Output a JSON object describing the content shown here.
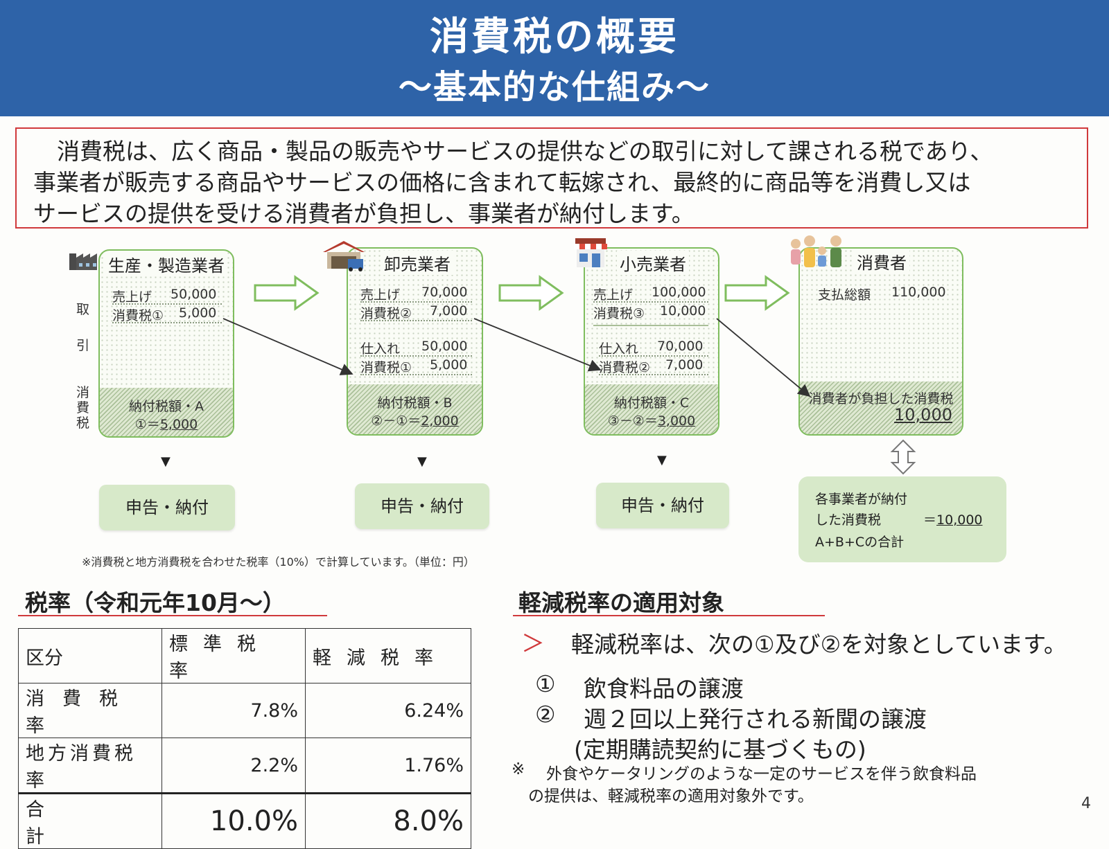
{
  "header": {
    "title": "消費税の概要",
    "subtitle": "～基本的な仕組み～"
  },
  "intro": {
    "line1": "消費税は、広く商品・製品の販売やサービスの提供などの取引に対して課される税であり、",
    "line2": "事業者が販売する商品やサービスの価格に含まれて転嫁され、最終的に商品等を消費し又は",
    "line3": "サービスの提供を受ける消費者が負担し、事業者が納付します。"
  },
  "side_labels": {
    "a": "取",
    "b": "引",
    "c1": "消",
    "c2": "費",
    "c3": "税"
  },
  "stages": [
    {
      "title": "生産・製造業者",
      "icon": "factory-icon",
      "sales_label": "売上げ",
      "sales_value": "50,000",
      "tax_label": "消費税①",
      "tax_value": "5,000",
      "pay_label": "納付税額・A",
      "pay_formula": "①＝",
      "pay_value": "5,000",
      "button": "申告・納付"
    },
    {
      "title": "卸売業者",
      "icon": "warehouse-icon",
      "sales_label": "売上げ",
      "sales_value": "70,000",
      "tax_label": "消費税②",
      "tax_value": "7,000",
      "purchase_label": "仕入れ",
      "purchase_value": "50,000",
      "ptax_label": "消費税①",
      "ptax_value": "5,000",
      "pay_label": "納付税額・B",
      "pay_formula": "②－①＝",
      "pay_value": "2,000",
      "button": "申告・納付"
    },
    {
      "title": "小売業者",
      "icon": "shop-icon",
      "sales_label": "売上げ",
      "sales_value": "100,000",
      "tax_label": "消費税③",
      "tax_value": "10,000",
      "purchase_label": "仕入れ",
      "purchase_value": "70,000",
      "ptax_label": "消費税②",
      "ptax_value": "7,000",
      "pay_label": "納付税額・C",
      "pay_formula": "③－②＝",
      "pay_value": "3,000",
      "button": "申告・納付"
    },
    {
      "title": "消費者",
      "icon": "family-icon",
      "paid_label": "支払総額",
      "paid_value": "110,000",
      "burden_label": "消費者が負担した消費税",
      "burden_value": "10,000"
    }
  ],
  "summary": {
    "line1": "各事業者が納付",
    "line2": "した消費税",
    "line3": "A+B+Cの合計",
    "eq": "＝",
    "value": "10,000"
  },
  "note": "※消費税と地方消費税を合わせた税率（10%）で計算しています。（単位：円）",
  "rates": {
    "title": "税率（令和元年10月～）",
    "headers": [
      "区分",
      "標準税率",
      "軽減税率"
    ],
    "rows": [
      {
        "label": "消費税率",
        "standard": "7.8%",
        "reduced": "6.24%"
      },
      {
        "label": "地方消費税率",
        "standard": "2.2%",
        "reduced": "1.76%"
      },
      {
        "label": "合計",
        "standard": "10.0%",
        "reduced": "8.0%"
      }
    ]
  },
  "reduced": {
    "title": "軽減税率の適用対象",
    "bullet": "＞",
    "lead": "軽減税率は、次の①及び②を対象としています。",
    "item1_num": "①",
    "item1": "飲食料品の譲渡",
    "item2_num": "②",
    "item2": "週２回以上発行される新聞の譲渡",
    "item2_sub": "(定期購読契約に基づくもの)",
    "note_mark": "※",
    "note1": "外食やケータリングのような一定のサービスを伴う飲食料品",
    "note2": "の提供は、軽減税率の適用対象外です。"
  },
  "page_number": "4",
  "colors": {
    "header_bg": "#2e63a8",
    "accent_red": "#d0393b",
    "box_green": "#7fbd5e",
    "button_green": "#d7e9c9"
  }
}
